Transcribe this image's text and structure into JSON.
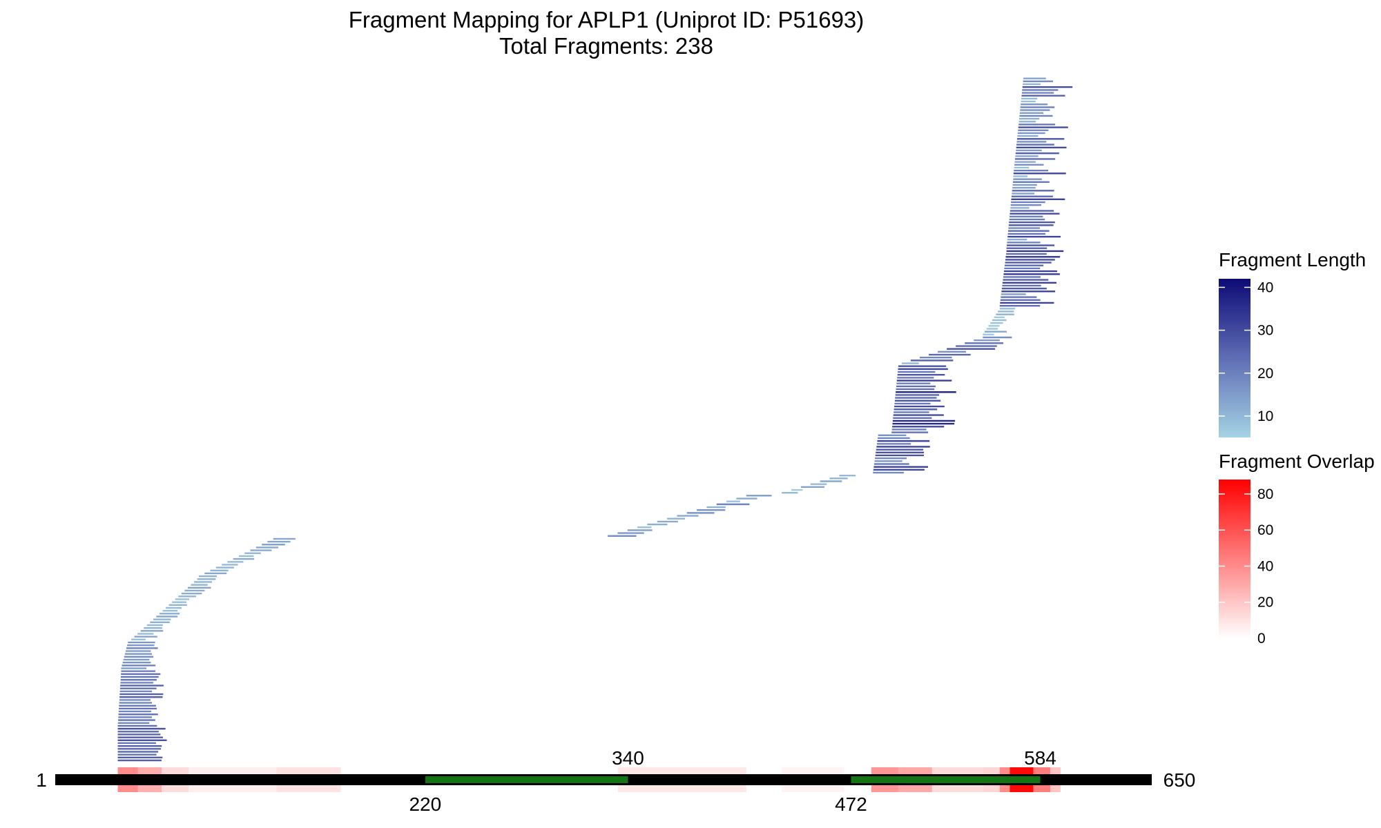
{
  "chart_data": {
    "type": "fragment-map",
    "title": "Fragment Mapping for APLP1 (Uniprot ID: P51693)",
    "subtitle": "Total Fragments: 238",
    "protein": {
      "start_label": "1",
      "end_label": "650",
      "length": 650,
      "bar_color": "#000000"
    },
    "domains": [
      {
        "start": 220,
        "end": 340,
        "start_label": "220",
        "end_label": "340",
        "color": "#137413"
      },
      {
        "start": 472,
        "end": 584,
        "start_label": "472",
        "end_label": "584",
        "color": "#137413"
      }
    ],
    "length_legend": {
      "title": "Fragment Length",
      "ticks": [
        "10",
        "20",
        "30",
        "40"
      ],
      "tick_values": [
        10,
        20,
        30,
        40
      ],
      "min": 5,
      "max": 42,
      "color_low": "#a4d3e3",
      "color_mid": "#5f6db5",
      "color_high": "#0d0a75"
    },
    "overlap_legend": {
      "title": "Fragment Overlap",
      "ticks": [
        "0",
        "20",
        "40",
        "60",
        "80"
      ],
      "tick_values": [
        0,
        20,
        40,
        60,
        80
      ],
      "min": 0,
      "max": 88,
      "color_low": "#ffffff",
      "color_high": "#ff0000"
    },
    "fragment_groups": [
      {
        "name": "",
        "start_from": 38,
        "start_to": 38,
        "count": 12,
        "len_min": 22,
        "len_max": 30
      },
      {
        "name": "",
        "start_from": 38,
        "start_to": 40,
        "count": 20,
        "len_min": 18,
        "len_max": 26
      },
      {
        "name": "",
        "start_from": 40,
        "start_to": 44,
        "count": 10,
        "len_min": 14,
        "len_max": 20
      },
      {
        "name": "",
        "start_from": 46,
        "start_to": 85,
        "count": 22,
        "len_min": 8,
        "len_max": 14
      },
      {
        "name": "",
        "start_from": 86,
        "start_to": 130,
        "count": 14,
        "len_min": 8,
        "len_max": 14
      },
      {
        "name": "",
        "start_from": 328,
        "start_to": 410,
        "count": 15,
        "len_min": 8,
        "len_max": 20
      },
      {
        "name": "",
        "start_from": 431,
        "start_to": 465,
        "count": 7,
        "len_min": 6,
        "len_max": 14
      },
      {
        "name": "",
        "start_from": 485,
        "start_to": 488,
        "count": 14,
        "len_min": 16,
        "len_max": 34
      },
      {
        "name": "",
        "start_from": 496,
        "start_to": 500,
        "count": 24,
        "len_min": 20,
        "len_max": 40
      },
      {
        "name": "",
        "start_from": 502,
        "start_to": 550,
        "count": 10,
        "len_min": 10,
        "len_max": 30
      },
      {
        "name": "",
        "start_from": 550,
        "start_to": 560,
        "count": 10,
        "len_min": 6,
        "len_max": 14
      },
      {
        "name": "",
        "start_from": 560,
        "start_to": 564,
        "count": 20,
        "len_min": 12,
        "len_max": 34
      },
      {
        "name": "",
        "start_from": 564,
        "start_to": 568,
        "count": 25,
        "len_min": 10,
        "len_max": 32
      },
      {
        "name": "",
        "start_from": 568,
        "start_to": 574,
        "count": 35,
        "len_min": 8,
        "len_max": 32
      }
    ],
    "overlap_profile": [
      {
        "from": 38,
        "to": 50,
        "value": 40
      },
      {
        "from": 50,
        "to": 64,
        "value": 28
      },
      {
        "from": 64,
        "to": 80,
        "value": 12
      },
      {
        "from": 80,
        "to": 132,
        "value": 6
      },
      {
        "from": 132,
        "to": 170,
        "value": 10
      },
      {
        "from": 170,
        "to": 300,
        "value": 0
      },
      {
        "from": 334,
        "to": 410,
        "value": 8
      },
      {
        "from": 431,
        "to": 468,
        "value": 4
      },
      {
        "from": 484,
        "to": 500,
        "value": 36
      },
      {
        "from": 500,
        "to": 520,
        "value": 30
      },
      {
        "from": 520,
        "to": 550,
        "value": 12
      },
      {
        "from": 550,
        "to": 560,
        "value": 14
      },
      {
        "from": 560,
        "to": 566,
        "value": 40
      },
      {
        "from": 566,
        "to": 580,
        "value": 85
      },
      {
        "from": 580,
        "to": 590,
        "value": 45
      },
      {
        "from": 590,
        "to": 596,
        "value": 20
      }
    ]
  }
}
